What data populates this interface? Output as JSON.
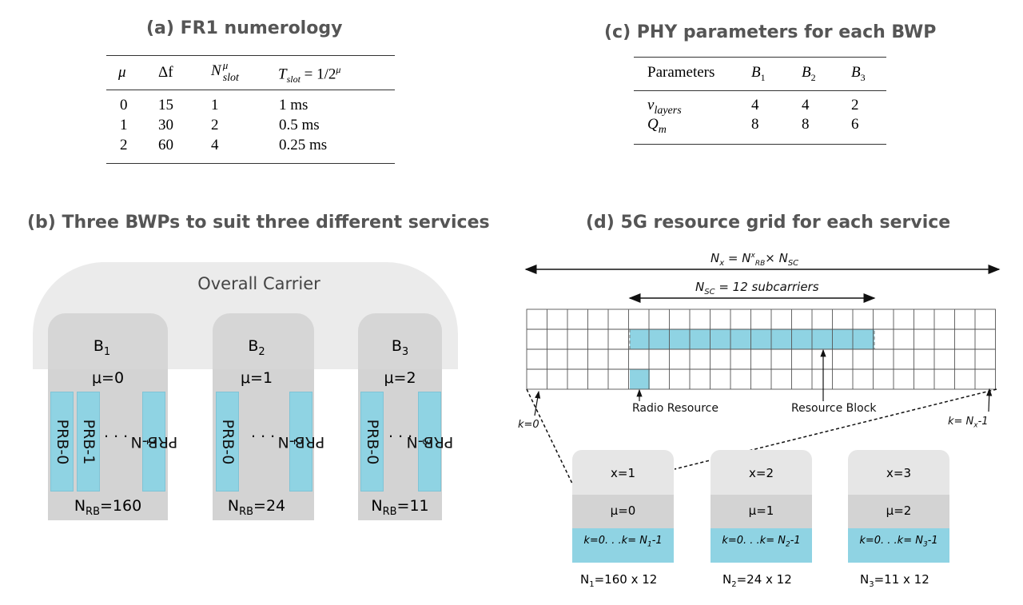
{
  "panel_a": {
    "title": "(a) FR1 numerology",
    "headers": [
      "μ",
      "Δf",
      "N",
      "μ",
      "slot",
      "T",
      "slot",
      "= 1/2",
      "μ"
    ],
    "rows": [
      {
        "mu": "0",
        "df": "15",
        "n": "1",
        "t": "1 ms"
      },
      {
        "mu": "1",
        "df": "30",
        "n": "2",
        "t": "0.5 ms"
      },
      {
        "mu": "2",
        "df": "60",
        "n": "4",
        "t": "0.25 ms"
      }
    ]
  },
  "panel_c": {
    "title": "(c) PHY parameters for each BWP",
    "header_params": "Parameters",
    "cols": [
      {
        "b": "B",
        "s": "1"
      },
      {
        "b": "B",
        "s": "2"
      },
      {
        "b": "B",
        "s": "3"
      }
    ],
    "row1": {
      "sym": "v",
      "sub": "layers",
      "vals": [
        "4",
        "4",
        "2"
      ]
    },
    "row2": {
      "sym": "Q",
      "sub": "m",
      "vals": [
        "8",
        "8",
        "6"
      ]
    }
  },
  "panel_b": {
    "title": "(b) Three BWPs to suit three different services",
    "carrier": "Overall Carrier",
    "bwps": [
      {
        "b": "B",
        "s": "1",
        "mu": "μ=0",
        "prbs": [
          "PRB-0",
          "PRB-1",
          "PRB-N"
        ],
        "last_sub": "1",
        "nrb": "N",
        "nrb_sub": "RB",
        "nrb_val": "=160"
      },
      {
        "b": "B",
        "s": "2",
        "mu": "μ=1",
        "prbs": [
          "PRB-0",
          "PRB-N"
        ],
        "last_sub": "2",
        "nrb": "N",
        "nrb_sub": "RB",
        "nrb_val": "=24"
      },
      {
        "b": "B",
        "s": "3",
        "mu": "μ=2",
        "prbs": [
          "PRB-0",
          "PRB-N"
        ],
        "last_sub": "3",
        "nrb": "N",
        "nrb_sub": "RB",
        "nrb_val": "=11"
      }
    ],
    "dots": ". . ."
  },
  "panel_d": {
    "title": "(d) 5G resource grid for each service",
    "nx_label": {
      "a": "N",
      "a_sub": "x",
      "eq": " = N",
      "b_sup": "x",
      "b_sub": "RB",
      "x": "× N",
      "c_sub": "SC"
    },
    "nsc_label": {
      "a": "N",
      "a_sub": "SC",
      "rest": " = 12 subcarriers"
    },
    "radio_resource": "Radio Resource",
    "resource_block": "Resource Block",
    "k0": "k=0",
    "kn": {
      "a": "k= N",
      "sub": "x",
      "b": "-1"
    },
    "services": [
      {
        "x": "x=1",
        "mu": "μ=0",
        "k_a": "k=0. . .k= N",
        "k_sub": "1",
        "k_b": "-1",
        "n": "N",
        "n_sub": "1",
        "n_val": "=160 x 12"
      },
      {
        "x": "x=2",
        "mu": "μ=1",
        "k_a": "k=0. . .k= N",
        "k_sub": "2",
        "k_b": "-1",
        "n": "N",
        "n_sub": "2",
        "n_val": "=24 x 12"
      },
      {
        "x": "x=3",
        "mu": "μ=2",
        "k_a": "k=0. . .k= N",
        "k_sub": "3",
        "k_b": "-1",
        "n": "N",
        "n_sub": "3",
        "n_val": "=11 x 12"
      }
    ]
  },
  "colors": {
    "cyan": "#8fd3e3",
    "light_gray": "#e6e6e6",
    "mid_gray": "#d3d3d3",
    "title_gray": "#555555"
  }
}
